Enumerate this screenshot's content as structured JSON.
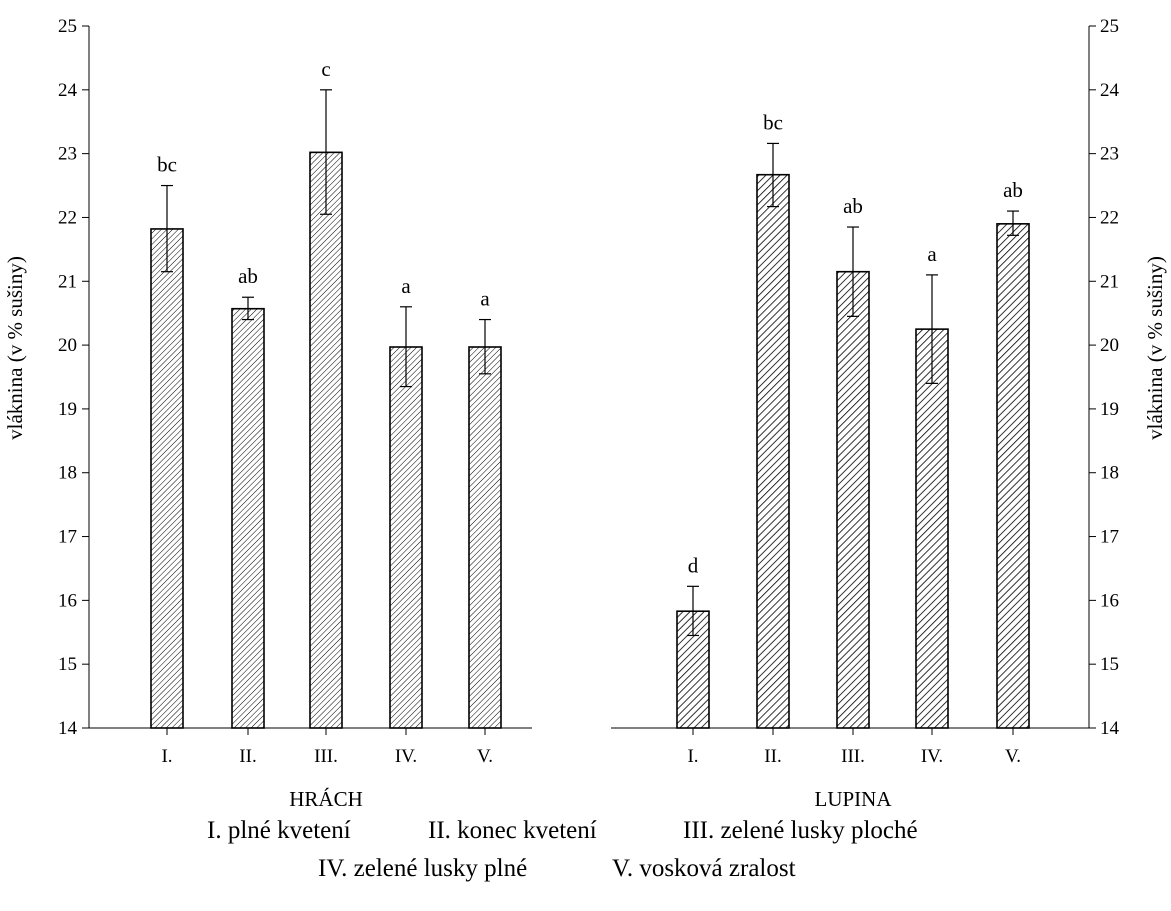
{
  "chart_data": {
    "type": "bar",
    "ylabel_left": "vláknina (v % sušiny)",
    "ylabel_right": "vláknina (v % sušiny)",
    "ylim": [
      14,
      25
    ],
    "yticks": [
      "14",
      "15",
      "16",
      "17",
      "18",
      "19",
      "20",
      "21",
      "22",
      "23",
      "24",
      "25"
    ],
    "panels": [
      {
        "name": "HRÁCH",
        "categories": [
          "I.",
          "II.",
          "III.",
          "IV.",
          "V."
        ],
        "values": [
          21.82,
          20.57,
          23.02,
          19.97,
          19.97
        ],
        "error_low": [
          21.15,
          20.4,
          22.05,
          19.35,
          19.55
        ],
        "error_high": [
          22.5,
          20.75,
          24.0,
          20.6,
          20.4
        ],
        "significance": [
          "bc",
          "ab",
          "c",
          "a",
          "a"
        ],
        "hatch": "fine"
      },
      {
        "name": "LUPINA",
        "categories": [
          "I.",
          "II.",
          "III.",
          "IV.",
          "V."
        ],
        "values": [
          15.83,
          22.67,
          21.15,
          20.25,
          21.9
        ],
        "error_low": [
          15.45,
          22.17,
          20.45,
          19.4,
          21.72
        ],
        "error_high": [
          16.22,
          23.16,
          21.85,
          21.1,
          22.1
        ],
        "significance": [
          "d",
          "bc",
          "ab",
          "a",
          "ab"
        ],
        "hatch": "coarse"
      }
    ],
    "legend": [
      "I. plné kvetení",
      "II. konec kvetení",
      "III. zelené lusky ploché",
      "IV. zelené lusky plné",
      "V. vosková zralost"
    ]
  }
}
